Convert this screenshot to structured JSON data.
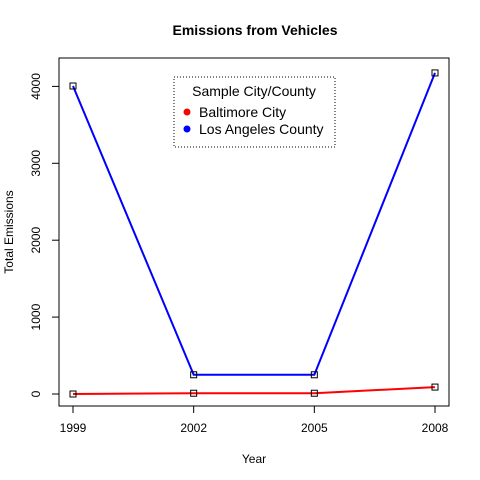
{
  "chart_data": {
    "type": "line",
    "title": "Emissions from Vehicles",
    "xlabel": "Year",
    "ylabel": "Total Emissions",
    "categories": [
      "1999",
      "2002",
      "2005",
      "2008"
    ],
    "x": [
      1999,
      2002,
      2005,
      2008
    ],
    "xlim": [
      1999,
      2008
    ],
    "ylim": [
      0,
      4200
    ],
    "yticks": [
      0,
      1000,
      2000,
      3000,
      4000
    ],
    "grid": false,
    "legend": {
      "title": "Sample City/County",
      "placement": "top-center"
    },
    "series": [
      {
        "name": "Baltimore City",
        "color": "#ff0000",
        "values": [
          0,
          10,
          10,
          90
        ]
      },
      {
        "name": "Los Angeles County",
        "color": "#0000ff",
        "values": [
          4005,
          250,
          250,
          4175
        ]
      }
    ],
    "marker": "open-square"
  }
}
